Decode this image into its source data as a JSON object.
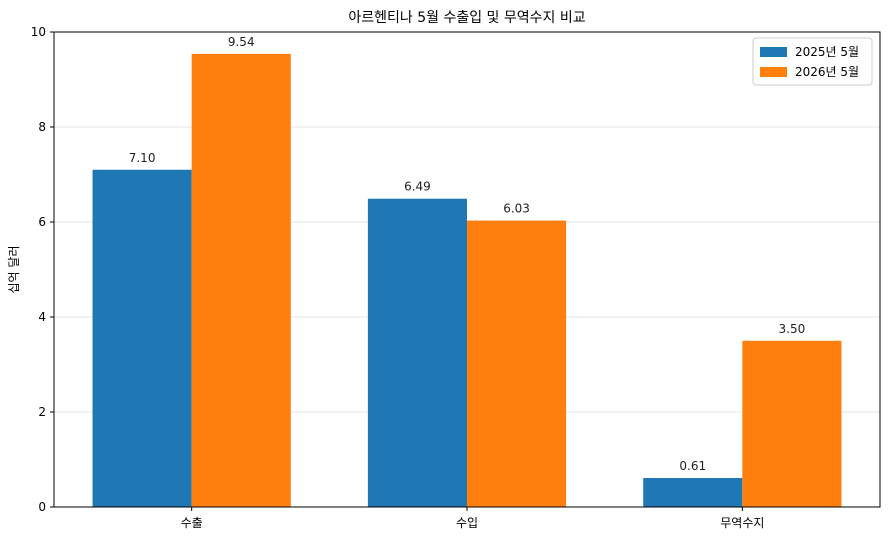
{
  "chart_data": {
    "type": "bar",
    "title": "아르헨티나 5월 수출입 및 무역수지 비교",
    "xlabel": "",
    "ylabel": "십억 달러",
    "categories": [
      "수출",
      "수입",
      "무역수지"
    ],
    "series": [
      {
        "name": "2025년 5월",
        "values": [
          7.1,
          6.49,
          0.61
        ],
        "labels": [
          "7.10",
          "6.49",
          "0.61"
        ],
        "color": "#1f77b4"
      },
      {
        "name": "2026년 5월",
        "values": [
          9.54,
          6.03,
          3.5
        ],
        "labels": [
          "9.54",
          "6.03",
          "3.50"
        ],
        "color": "#ff7f0e"
      }
    ],
    "ylim": [
      0,
      10
    ],
    "yticks": [
      "0",
      "2",
      "4",
      "6",
      "8",
      "10"
    ],
    "grid": "y-axis, light gray",
    "legend": "top-right"
  }
}
